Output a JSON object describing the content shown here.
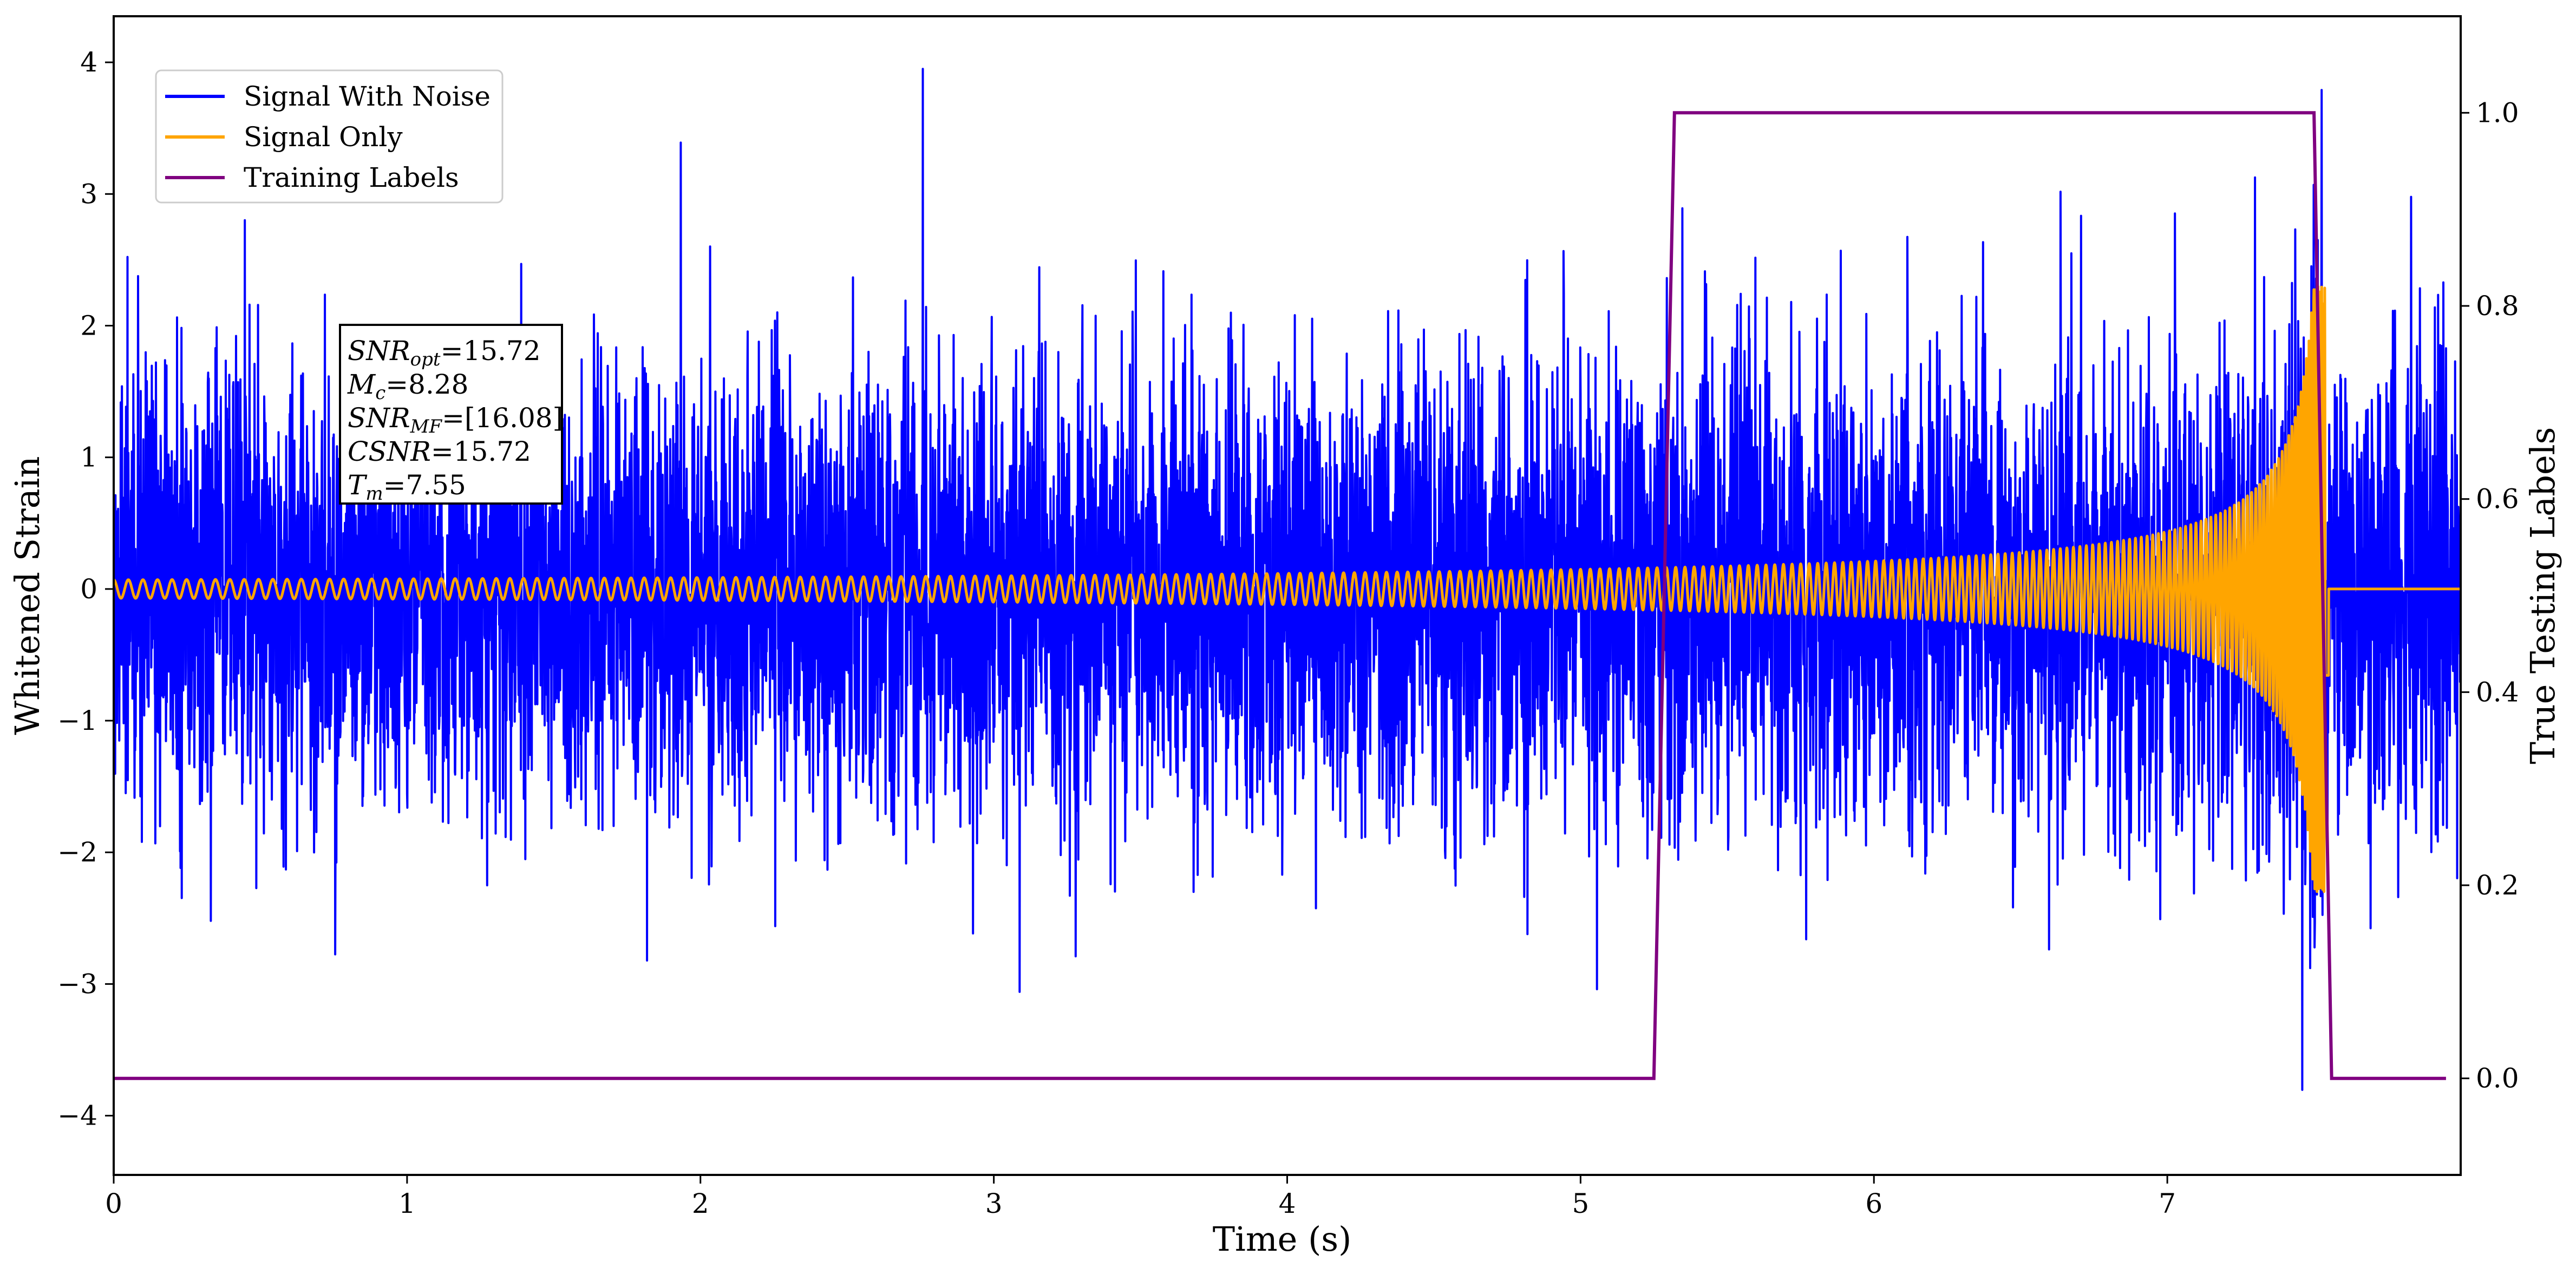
{
  "chart_data": {
    "type": "line",
    "xlabel": "Time (s)",
    "ylabel": "Whitened Strain",
    "y2label": "True Testing Labels",
    "xlim": [
      0,
      8.0
    ],
    "ylim": [
      -4.45,
      4.35
    ],
    "y2lim": [
      -0.1,
      1.1
    ],
    "grid": false,
    "legend_position": "top-left",
    "x_ticks": [
      0,
      1,
      2,
      3,
      4,
      5,
      6,
      7
    ],
    "y_ticks": [
      -4,
      -3,
      -2,
      -1,
      0,
      1,
      2,
      3,
      4
    ],
    "y2_ticks": [
      0.0,
      0.2,
      0.4,
      0.6,
      0.8,
      1.0
    ],
    "x_tick_labels": [
      "0",
      "1",
      "2",
      "3",
      "4",
      "5",
      "6",
      "7"
    ],
    "y_tick_labels": [
      "−4",
      "−3",
      "−2",
      "−1",
      "0",
      "1",
      "2",
      "3",
      "4"
    ],
    "y2_tick_labels": [
      "0.0",
      "0.2",
      "0.4",
      "0.6",
      "0.8",
      "1.0"
    ],
    "series": [
      {
        "name": "Signal With Noise",
        "color": "#0000ff",
        "axis": "left",
        "description_kind": "noise",
        "noise_std": 0.85,
        "x_range": [
          0,
          8.0
        ],
        "min": -4.03,
        "max": 3.95
      },
      {
        "name": "Signal Only",
        "color": "#ffa500",
        "axis": "left",
        "description_kind": "chirp",
        "x_range": [
          0,
          8.0
        ],
        "merger_time": 7.55,
        "start_amplitude": 0.07,
        "peak_amplitude": 2.3,
        "start_frequency": 20,
        "post_merger_value": 0.0
      },
      {
        "name": "Training Labels",
        "color": "#800080",
        "axis": "right",
        "description_kind": "step",
        "points": [
          [
            0.0,
            0.0
          ],
          [
            5.25,
            0.0
          ],
          [
            5.32,
            1.0
          ],
          [
            7.5,
            1.0
          ],
          [
            7.56,
            0.0
          ],
          [
            7.95,
            0.0
          ]
        ]
      }
    ],
    "annotation": {
      "lines": [
        {
          "var": "SNR",
          "sub": "opt",
          "val": "=15.72"
        },
        {
          "var": "M",
          "sub": "c",
          "val": "=8.28"
        },
        {
          "var": "SNR",
          "sub": "MF",
          "val": "=[16.08]"
        },
        {
          "var": "CSNR",
          "sub": "",
          "val": "=15.72"
        },
        {
          "var": "T",
          "sub": "m",
          "val": "=7.55"
        }
      ]
    }
  }
}
